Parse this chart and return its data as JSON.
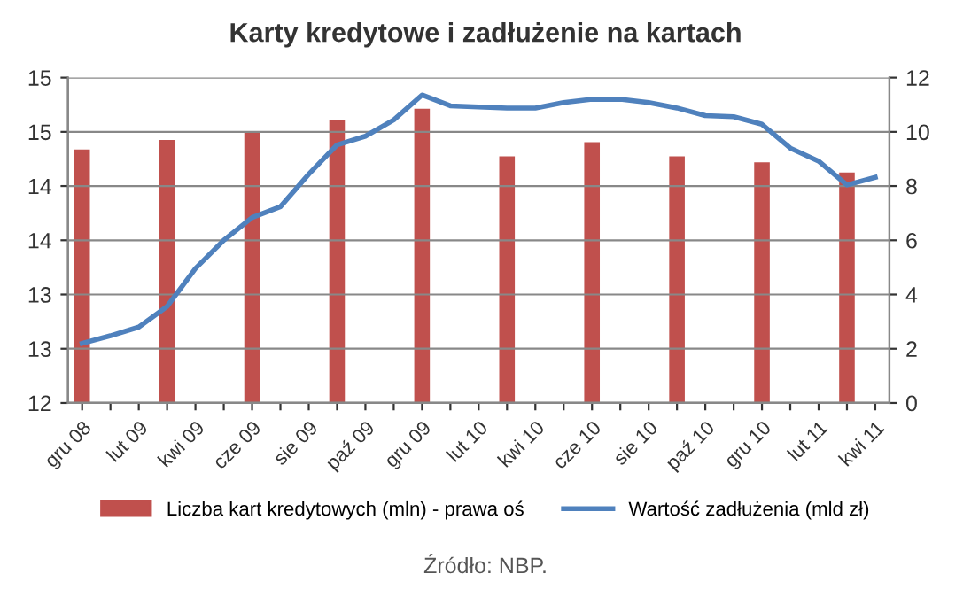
{
  "chart_data": {
    "type": "bar",
    "title": "Karty kredytowe i zadłużenie na kartach",
    "categories": [
      "gru 08",
      null,
      "lut 09",
      null,
      "kwi 09",
      null,
      "cze 09",
      null,
      "sie 09",
      null,
      "paź 09",
      null,
      "gru 09",
      null,
      "lut 10",
      null,
      "kwi 10",
      null,
      "cze 10",
      null,
      "sie 10",
      null,
      "paź 10",
      null,
      "gru 10",
      null,
      "lut 11",
      null,
      "kwi 11"
    ],
    "series": [
      {
        "name": "Liczba kart kredytowych (mln) - prawa oś",
        "axis": "y2",
        "color": "#c0504d",
        "values": [
          9.35,
          null,
          null,
          9.7,
          null,
          null,
          9.97,
          null,
          null,
          10.45,
          null,
          null,
          10.85,
          null,
          null,
          9.1,
          null,
          null,
          9.62,
          null,
          null,
          9.1,
          null,
          null,
          8.88,
          null,
          null,
          8.5,
          null
        ]
      },
      {
        "name": "Wartość zadłużenia (mld zł)",
        "type": "line",
        "color": "#4f81bd",
        "values": [
          12.55,
          12.62,
          12.7,
          12.89,
          13.24,
          13.5,
          13.71,
          13.81,
          14.11,
          14.38,
          14.46,
          14.61,
          14.84,
          14.74,
          14.73,
          14.72,
          14.72,
          14.77,
          14.8,
          14.8,
          14.77,
          14.72,
          14.65,
          14.64,
          14.57,
          14.35,
          14.23,
          14.01,
          14.08
        ]
      }
    ],
    "ylim": [
      12,
      15
    ],
    "yticks": [
      12,
      {
        "value": 12.5,
        "label": "13"
      },
      13,
      {
        "value": 13.5,
        "label": "14"
      },
      14,
      {
        "value": 14.5,
        "label": "15"
      },
      15
    ],
    "y2lim": [
      0,
      12
    ],
    "y2ticks": [
      0,
      2,
      4,
      6,
      8,
      10,
      12
    ],
    "grid": "y",
    "legend": "bottom",
    "marker": "none",
    "line_style": "solid",
    "annotations": [
      "Źródło: NBP."
    ]
  }
}
